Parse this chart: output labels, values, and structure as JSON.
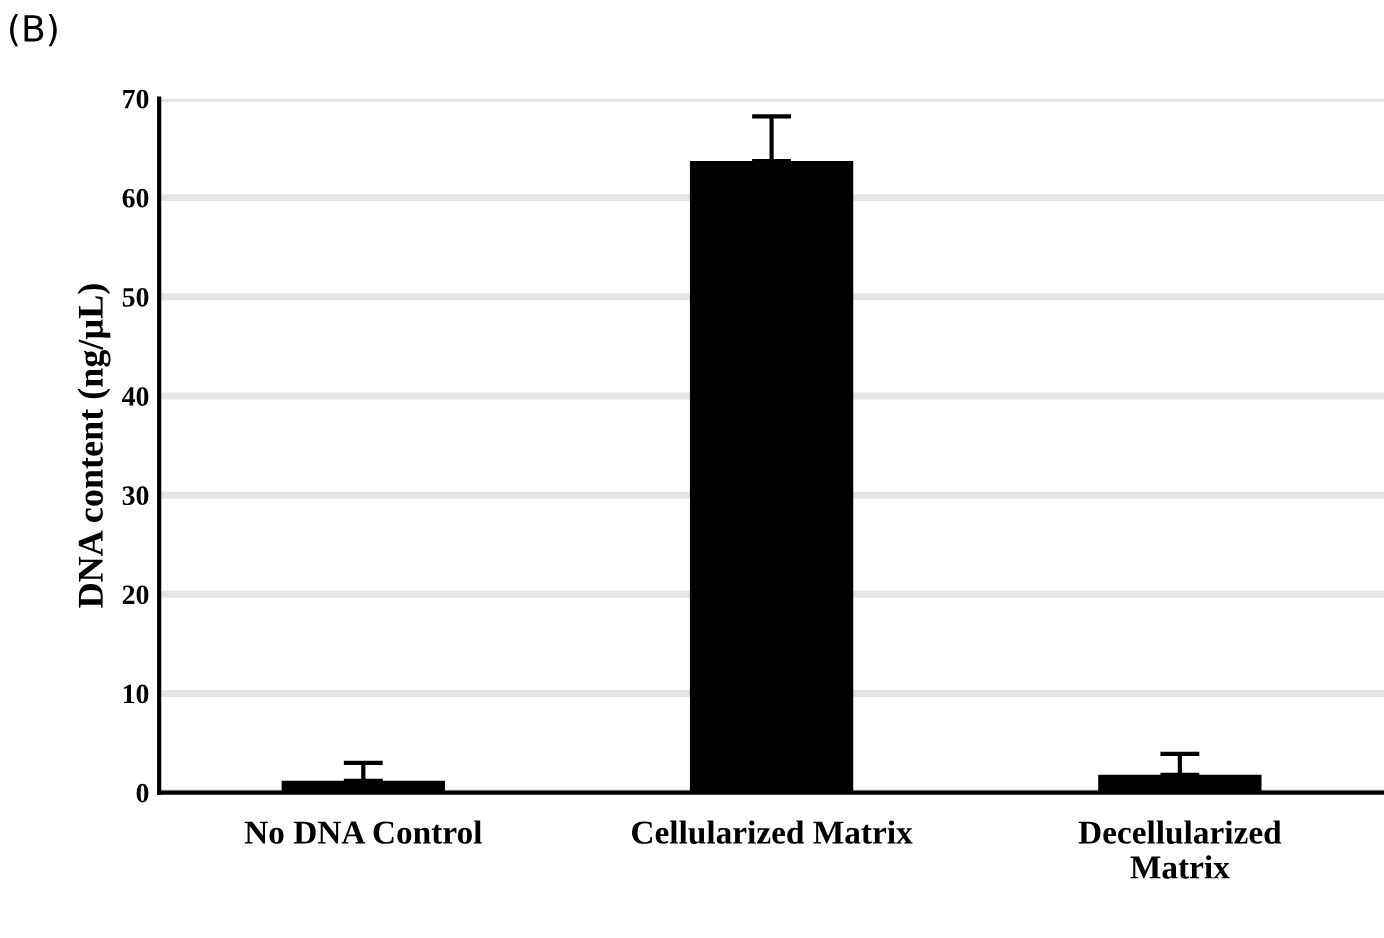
{
  "chart_data": {
    "type": "bar",
    "title": "(B)",
    "ylabel": "DNA content (ng/µL)",
    "categories": [
      "No DNA Control",
      "Cellularized Matrix",
      "Decellularized\nMatrix"
    ],
    "values": [
      1.2,
      63.7,
      1.8
    ],
    "errors": [
      [
        1.2,
        3.0
      ],
      [
        63.7,
        68.2
      ],
      [
        1.8,
        3.9
      ]
    ],
    "color": "#000000",
    "ylim": [
      0,
      70
    ],
    "yticks": [
      0,
      10,
      20,
      30,
      40,
      50,
      60,
      70
    ],
    "grid": "y"
  }
}
